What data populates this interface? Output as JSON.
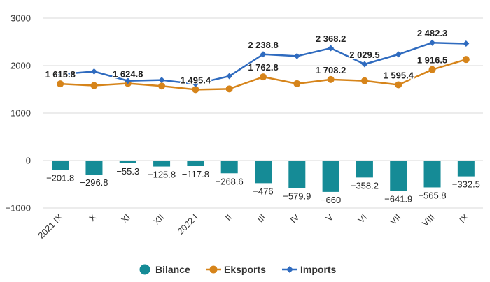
{
  "chart_data": {
    "type": "bar+line",
    "categories": [
      "2021 IX",
      "X",
      "XI",
      "XII",
      "2022 I",
      "II",
      "III",
      "IV",
      "V",
      "VI",
      "VII",
      "VIII",
      "IX"
    ],
    "ylim": [
      -1000,
      3000
    ],
    "yticks": [
      -1000,
      0,
      1000,
      2000,
      3000
    ],
    "ytick_labels": [
      "−1000",
      "0",
      "1000",
      "2000",
      "3000"
    ],
    "grid": true,
    "legend_position": "bottom",
    "series": [
      {
        "name": "Bilance",
        "kind": "bar",
        "color": "#158b96",
        "values": [
          -201.8,
          -296.8,
          -55.3,
          -125.8,
          -117.8,
          -268.6,
          -476,
          -579.9,
          -660,
          -358.2,
          -641.9,
          -565.8,
          -332.5
        ],
        "labels": [
          "−201.8",
          "−296.8",
          "−55.3",
          "−125.8",
          "−117.8",
          "−268.6",
          "−476",
          "−579.9",
          "−660",
          "−358.2",
          "−641.9",
          "−565.8",
          "−332.5"
        ]
      },
      {
        "name": "Eksports",
        "kind": "line",
        "color": "#d6841a",
        "marker": "circle",
        "values": [
          1615.8,
          1580,
          1624.8,
          1570,
          1495.4,
          1510,
          1762.8,
          1620,
          1708.2,
          1680,
          1595.4,
          1916.5,
          2130
        ],
        "labels": [
          "1 615.8",
          "",
          "1 624.8",
          "",
          "1 495.4",
          "",
          "1 762.8",
          "",
          "1 708.2",
          "",
          "1 595.4",
          "1 916.5",
          ""
        ]
      },
      {
        "name": "Imports",
        "kind": "line",
        "color": "#2f6bbf",
        "marker": "diamond",
        "values": [
          1817.6,
          1876.8,
          1680.1,
          1695.8,
          1613.2,
          1778.6,
          2238.8,
          2199.9,
          2368.2,
          2029.5,
          2237.3,
          2482.3,
          2462.5
        ],
        "labels": [
          "",
          "",
          "",
          "",
          "",
          "",
          "2 238.8",
          "",
          "2 368.2",
          "2 029.5",
          "",
          "2 482.3",
          ""
        ]
      }
    ]
  }
}
